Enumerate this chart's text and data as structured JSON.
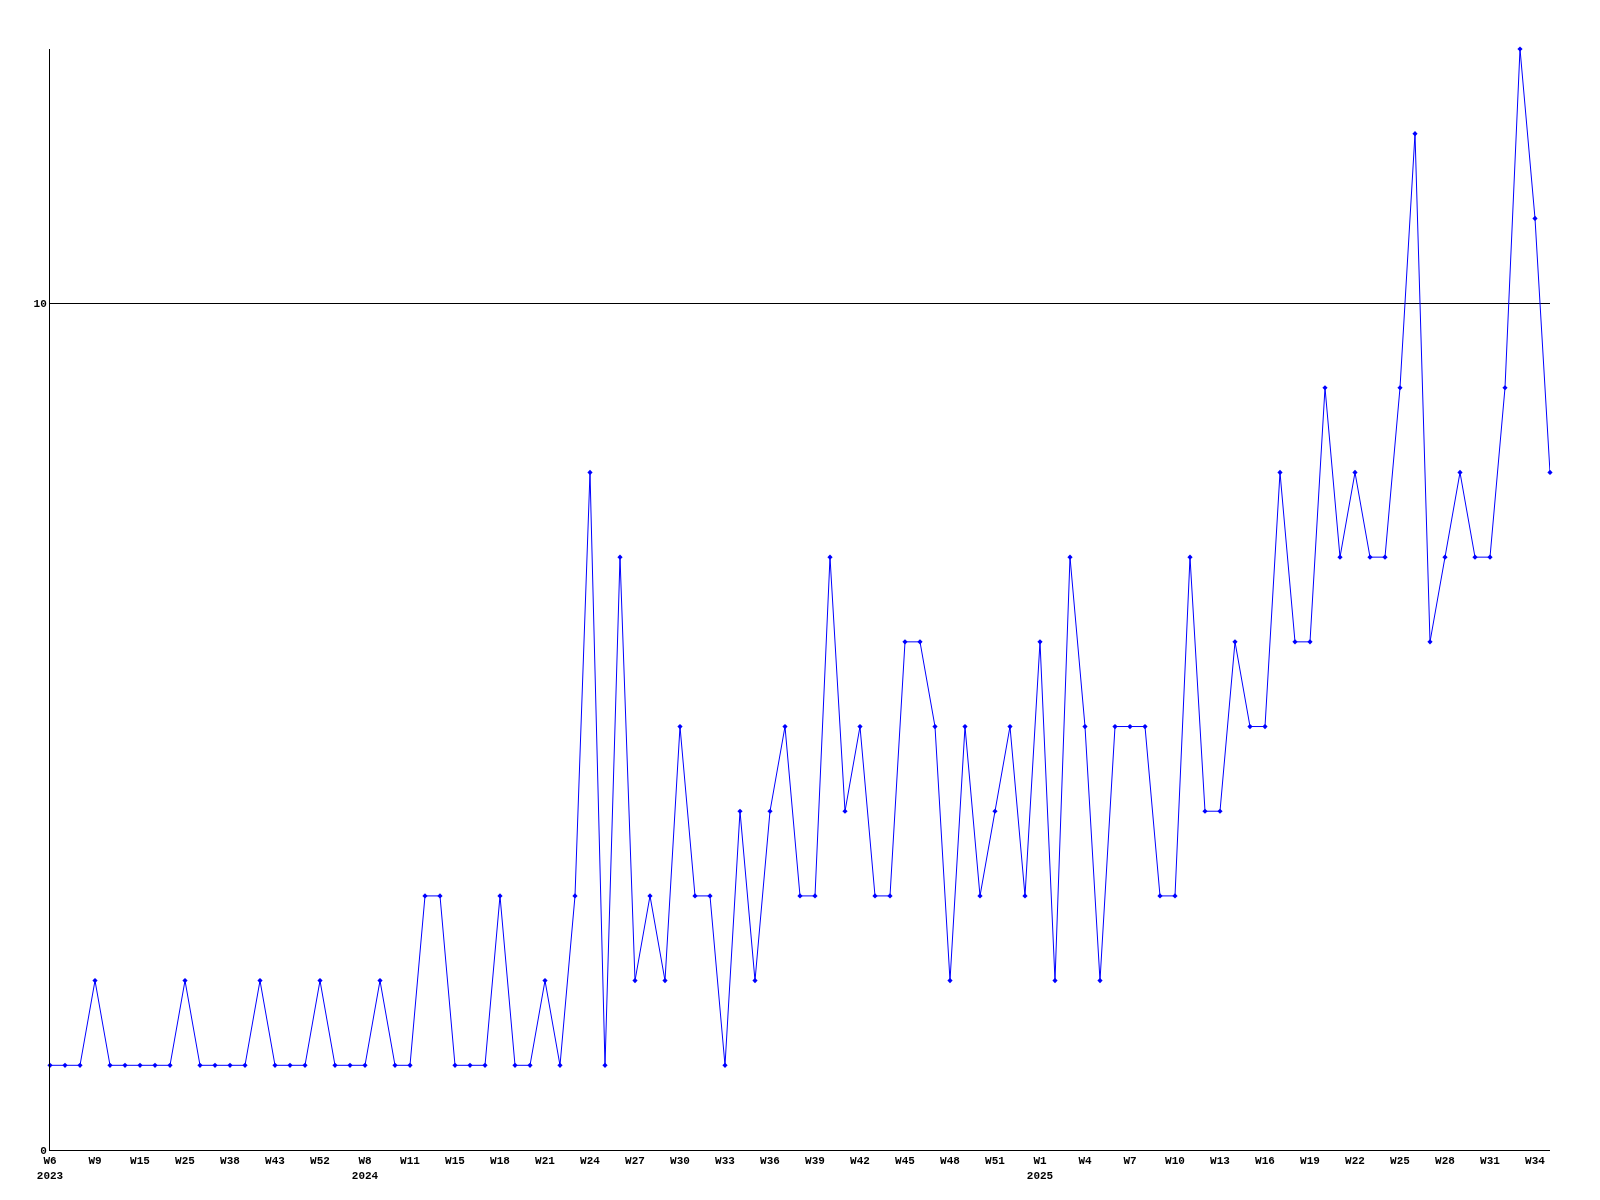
{
  "chart_data": {
    "type": "line",
    "categories": [
      "W6\n2023",
      null,
      null,
      "W9",
      null,
      null,
      "W15",
      null,
      null,
      "W25",
      null,
      null,
      "W38",
      null,
      null,
      "W43",
      null,
      null,
      "W52",
      null,
      null,
      "W8\n2024",
      null,
      null,
      "W11",
      null,
      null,
      "W15",
      null,
      null,
      "W18",
      null,
      null,
      "W21",
      null,
      null,
      "W24",
      null,
      null,
      "W27",
      null,
      null,
      "W30",
      null,
      null,
      "W33",
      null,
      null,
      "W36",
      null,
      null,
      "W39",
      null,
      null,
      "W42",
      null,
      null,
      "W45",
      null,
      null,
      "W48",
      null,
      null,
      "W51",
      null,
      null,
      "W1\n2025",
      null,
      null,
      "W4",
      null,
      null,
      "W7",
      null,
      null,
      "W10",
      null,
      null,
      "W13",
      null,
      null,
      "W16",
      null,
      null,
      "W19",
      null,
      null,
      "W22",
      null,
      null,
      "W25",
      null,
      null,
      "W28",
      null,
      null,
      "W31",
      null,
      null,
      "W34",
      null
    ],
    "series": [
      {
        "color": "#0000ff",
        "values": [
          1,
          1,
          1,
          2,
          1,
          1,
          1,
          1,
          1,
          2,
          1,
          1,
          1,
          1,
          2,
          1,
          1,
          1,
          2,
          1,
          1,
          1,
          2,
          1,
          1,
          3,
          3,
          1,
          1,
          1,
          3,
          1,
          1,
          2,
          1,
          3,
          8,
          1,
          7,
          2,
          3,
          2,
          5,
          3,
          3,
          1,
          4,
          2,
          4,
          5,
          3,
          3,
          7,
          4,
          5,
          3,
          3,
          6,
          6,
          5,
          2,
          5,
          3,
          4,
          5,
          3,
          6,
          2,
          7,
          5,
          2,
          5,
          5,
          5,
          3,
          3,
          7,
          4,
          4,
          6,
          5,
          5,
          8,
          6,
          6,
          9,
          7,
          8,
          7,
          7,
          9,
          12,
          6,
          7,
          8,
          7,
          7,
          9,
          13,
          11,
          8
        ]
      }
    ],
    "ylim": [
      0,
      13
    ],
    "yticks": [
      0,
      10
    ],
    "grid": "y",
    "marker": "diamond",
    "line_style": "solid"
  }
}
